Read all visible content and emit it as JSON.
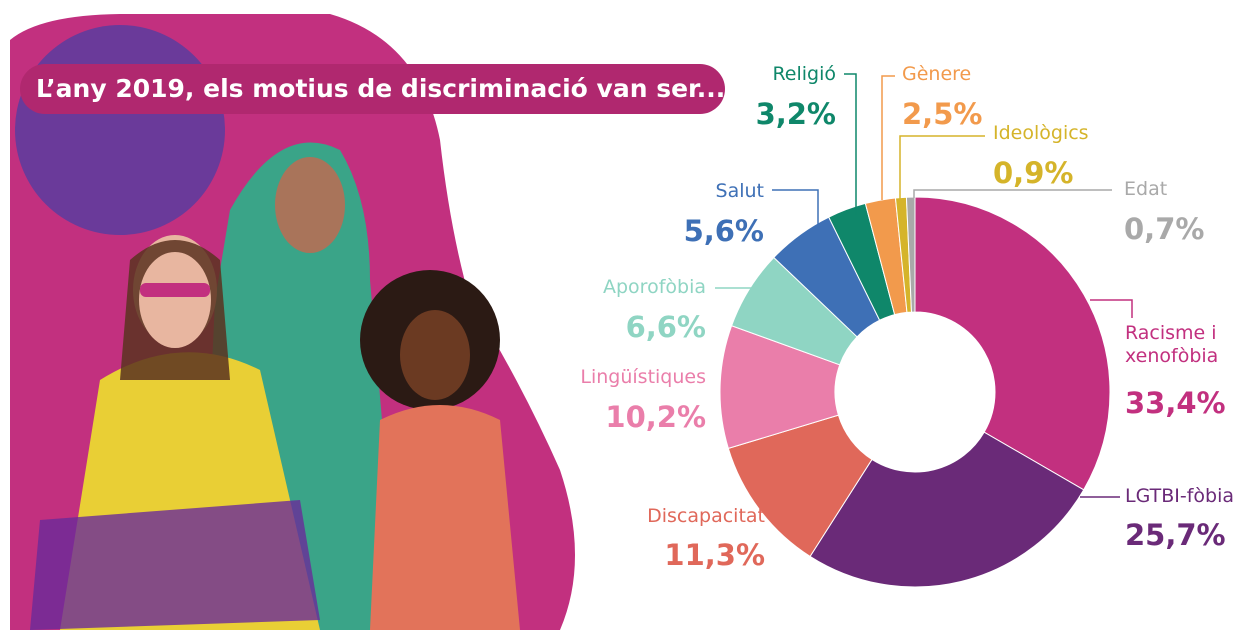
{
  "chart_data": {
    "type": "donut",
    "title": "L’any 2019, els motius de discriminació van ser...",
    "categories": [
      "Racisme i xenofòbia",
      "LGTBI-fòbia",
      "Discapacitat",
      "Lingüístiques",
      "Aporofòbia",
      "Salut",
      "Religió",
      "Gènere",
      "Ideològics",
      "Edat"
    ],
    "values": [
      33.4,
      25.7,
      11.3,
      10.2,
      6.6,
      5.6,
      3.2,
      2.5,
      0.9,
      0.7
    ],
    "value_labels": [
      "33,4%",
      "25,7%",
      "11,3%",
      "10,2%",
      "6,6%",
      "5,6%",
      "3,2%",
      "2,5%",
      "0,9%",
      "0,7%"
    ],
    "colors": [
      "#c2307f",
      "#6a2a78",
      "#e0685a",
      "#ea7eaa",
      "#8fd5c3",
      "#3e70b6",
      "#0f876a",
      "#f29a4c",
      "#d5b42a",
      "#a9a9a9"
    ]
  }
}
